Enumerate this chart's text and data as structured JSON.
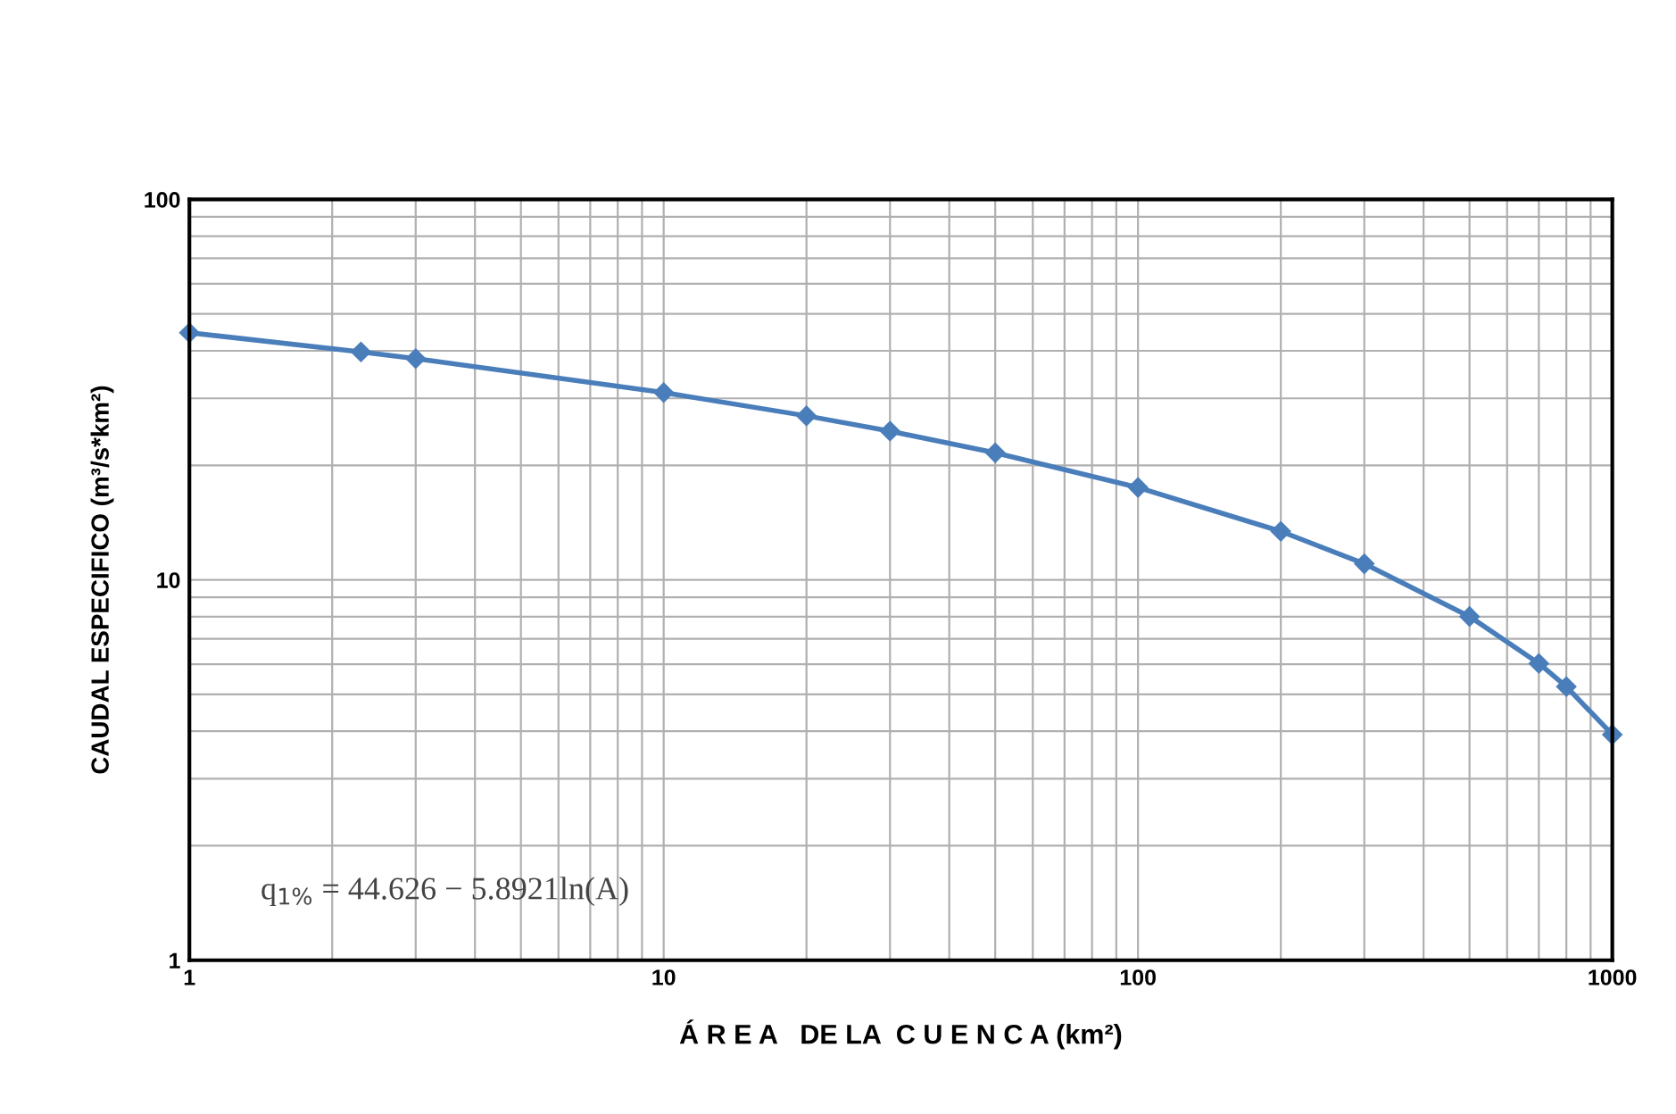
{
  "chart_data": {
    "type": "line",
    "xlabel": "Á R E A   DE LA  C U E N C A (km²)",
    "ylabel": "CAUDAL ESPECIFICO (m³/s*km²)",
    "x": [
      1,
      2.3,
      3,
      10,
      20,
      30,
      50,
      100,
      200,
      300,
      500,
      700,
      800,
      1000
    ],
    "series": [
      {
        "color": "#4a7ebb",
        "values": [
          44.63,
          39.72,
          38.15,
          31.06,
          26.98,
          24.59,
          21.58,
          17.49,
          13.41,
          11.02,
          8.01,
          6.03,
          5.24,
          3.92
        ]
      }
    ],
    "log": "xy",
    "xlim": [
      1,
      1000
    ],
    "ylim": [
      1,
      100
    ],
    "xticks": [
      1,
      10,
      100,
      1000
    ],
    "yticks": [
      1,
      10,
      100
    ],
    "grid": true,
    "marker": "diamond",
    "line_style": "solid",
    "annotations": [
      "q$_{1%}$ = 44.626 − 5.8921ln(A)"
    ]
  }
}
